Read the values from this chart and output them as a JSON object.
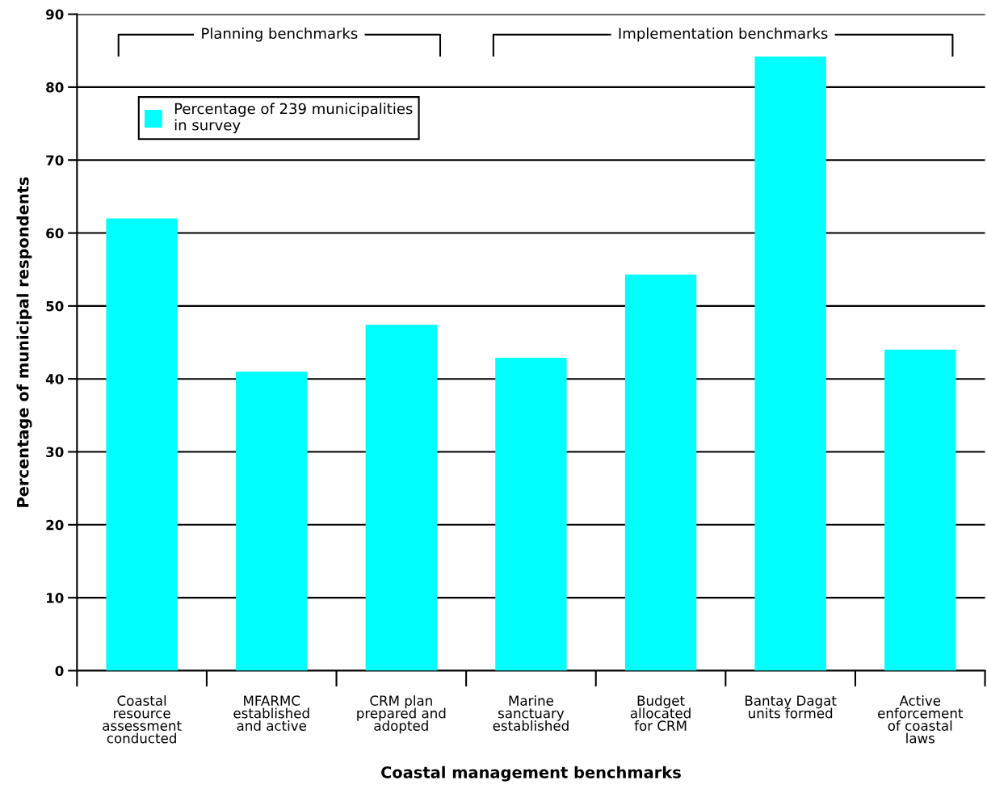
{
  "chart_data": {
    "type": "bar",
    "xlabel": "Coastal management benchmarks",
    "ylabel": "Percentage of municipal respondents",
    "categories": [
      "Coastal\nresource\nassessment\nconducted",
      "MFARMC\nestablished\nand active",
      "CRM plan\nprepared and\nadopted",
      "Marine\nsanctuary\nestablished",
      "Budget\nallocated\nfor CRM",
      "Bantay Dagat\nunits formed",
      "Active\nenforcement\nof coastal\nlaws"
    ],
    "series": [
      {
        "name": "Percentage of 239 municipalities\nin survey",
        "color": "#00ffff",
        "values": [
          62.0,
          41.0,
          47.4,
          42.9,
          54.3,
          84.2,
          44.0
        ]
      }
    ],
    "ylim": [
      0,
      90
    ],
    "yticks": [
      0,
      10,
      20,
      30,
      40,
      50,
      60,
      70,
      80,
      90
    ],
    "grid": "y",
    "legend": "top left",
    "annotations": [
      "Planning benchmarks",
      "Implementation benchmarks"
    ]
  }
}
